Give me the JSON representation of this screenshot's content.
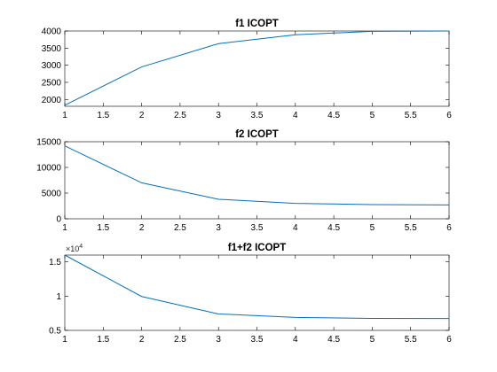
{
  "chart_data": [
    {
      "type": "line",
      "title": "f1 ICOPT",
      "xlabel": "",
      "ylabel": "",
      "xlim": [
        1,
        6
      ],
      "ylim": [
        1800,
        4000
      ],
      "x_ticks": [
        1,
        1.5,
        2,
        2.5,
        3,
        3.5,
        4,
        4.5,
        5,
        5.5,
        6
      ],
      "y_ticks": [
        2000,
        2500,
        3000,
        3500,
        4000
      ],
      "x": [
        1,
        2,
        3,
        4,
        5,
        6
      ],
      "values": [
        1830,
        2950,
        3630,
        3890,
        3990,
        4000
      ],
      "color": "#0072bd",
      "grid": false
    },
    {
      "type": "line",
      "title": "f2 ICOPT",
      "xlabel": "",
      "ylabel": "",
      "xlim": [
        1,
        6
      ],
      "ylim": [
        0,
        15000
      ],
      "x_ticks": [
        1,
        1.5,
        2,
        2.5,
        3,
        3.5,
        4,
        4.5,
        5,
        5.5,
        6
      ],
      "y_ticks": [
        0,
        5000,
        10000,
        15000
      ],
      "x": [
        1,
        2,
        3,
        4,
        5,
        6
      ],
      "values": [
        14200,
        7000,
        3800,
        3000,
        2750,
        2700
      ],
      "color": "#0072bd",
      "grid": false
    },
    {
      "type": "line",
      "title": "f1+f2 ICOPT",
      "xlabel": "",
      "ylabel": "",
      "xlim": [
        1,
        6
      ],
      "ylim": [
        0.5,
        1.6
      ],
      "x_ticks": [
        1,
        1.5,
        2,
        2.5,
        3,
        3.5,
        4,
        4.5,
        5,
        5.5,
        6
      ],
      "y_ticks": [
        0.5,
        1,
        1.5
      ],
      "y_exponent_label": "×10",
      "y_exponent_power": "4",
      "x": [
        1,
        2,
        3,
        4,
        5,
        6
      ],
      "values": [
        1.6,
        0.995,
        0.74,
        0.69,
        0.675,
        0.673
      ],
      "color": "#0072bd",
      "grid": false
    }
  ]
}
